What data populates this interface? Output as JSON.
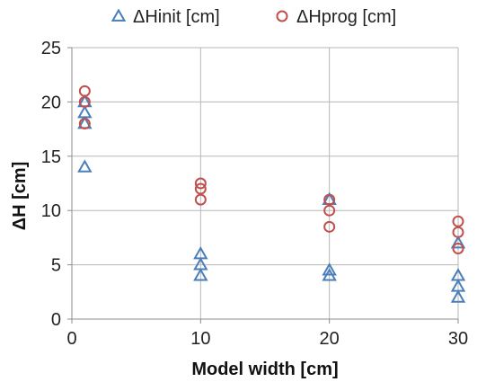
{
  "chart_data": {
    "type": "scatter",
    "xlabel": "Model width [cm]",
    "ylabel": "ΔH [cm]",
    "xlim": [
      0,
      30
    ],
    "ylim": [
      0,
      25
    ],
    "xticks": [
      0,
      10,
      20,
      30
    ],
    "yticks": [
      0,
      5,
      10,
      15,
      20,
      25
    ],
    "grid": true,
    "legend_position": "top",
    "series": [
      {
        "name": "ΔHinit [cm]",
        "marker": "triangle",
        "color": "#4a7ebb",
        "points": [
          {
            "x": 1,
            "y": 14
          },
          {
            "x": 1,
            "y": 18
          },
          {
            "x": 1,
            "y": 19
          },
          {
            "x": 1,
            "y": 20
          },
          {
            "x": 10,
            "y": 4
          },
          {
            "x": 10,
            "y": 5
          },
          {
            "x": 10,
            "y": 6
          },
          {
            "x": 20,
            "y": 4
          },
          {
            "x": 20,
            "y": 4.5
          },
          {
            "x": 20,
            "y": 11
          },
          {
            "x": 30,
            "y": 2
          },
          {
            "x": 30,
            "y": 3
          },
          {
            "x": 30,
            "y": 4
          },
          {
            "x": 30,
            "y": 7
          }
        ]
      },
      {
        "name": "ΔHprog [cm]",
        "marker": "circle",
        "color": "#c0504d",
        "points": [
          {
            "x": 1,
            "y": 18
          },
          {
            "x": 1,
            "y": 20
          },
          {
            "x": 1,
            "y": 21
          },
          {
            "x": 10,
            "y": 11
          },
          {
            "x": 10,
            "y": 12
          },
          {
            "x": 10,
            "y": 12.5
          },
          {
            "x": 20,
            "y": 8.5
          },
          {
            "x": 20,
            "y": 10
          },
          {
            "x": 20,
            "y": 11
          },
          {
            "x": 30,
            "y": 6.5
          },
          {
            "x": 30,
            "y": 8
          },
          {
            "x": 30,
            "y": 9
          }
        ]
      }
    ]
  }
}
